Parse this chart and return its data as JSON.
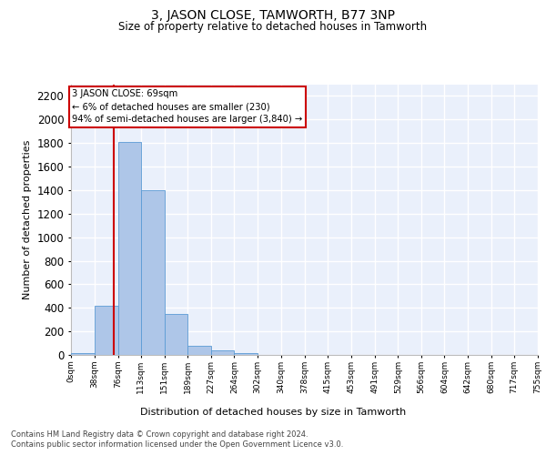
{
  "title": "3, JASON CLOSE, TAMWORTH, B77 3NP",
  "subtitle": "Size of property relative to detached houses in Tamworth",
  "xlabel": "Distribution of detached houses by size in Tamworth",
  "ylabel": "Number of detached properties",
  "bar_color": "#aec6e8",
  "bar_edge_color": "#5b9bd5",
  "background_color": "#eaf0fb",
  "grid_color": "#ffffff",
  "bin_edges": [
    0,
    38,
    76,
    113,
    151,
    189,
    227,
    264,
    302,
    340,
    378,
    415,
    453,
    491,
    529,
    566,
    604,
    642,
    680,
    717,
    755
  ],
  "bin_labels": [
    "0sqm",
    "38sqm",
    "76sqm",
    "113sqm",
    "151sqm",
    "189sqm",
    "227sqm",
    "264sqm",
    "302sqm",
    "340sqm",
    "378sqm",
    "415sqm",
    "453sqm",
    "491sqm",
    "529sqm",
    "566sqm",
    "604sqm",
    "642sqm",
    "680sqm",
    "717sqm",
    "755sqm"
  ],
  "bar_heights": [
    15,
    420,
    1810,
    1400,
    350,
    80,
    35,
    18,
    0,
    0,
    0,
    0,
    0,
    0,
    0,
    0,
    0,
    0,
    0,
    0
  ],
  "ylim": [
    0,
    2300
  ],
  "yticks": [
    0,
    200,
    400,
    600,
    800,
    1000,
    1200,
    1400,
    1600,
    1800,
    2000,
    2200
  ],
  "vline_x": 69,
  "annotation_title": "3 JASON CLOSE: 69sqm",
  "annotation_line1": "← 6% of detached houses are smaller (230)",
  "annotation_line2": "94% of semi-detached houses are larger (3,840) →",
  "annotation_box_color": "#ffffff",
  "annotation_box_edge": "#cc0000",
  "vline_color": "#cc0000",
  "footer_line1": "Contains HM Land Registry data © Crown copyright and database right 2024.",
  "footer_line2": "Contains public sector information licensed under the Open Government Licence v3.0."
}
